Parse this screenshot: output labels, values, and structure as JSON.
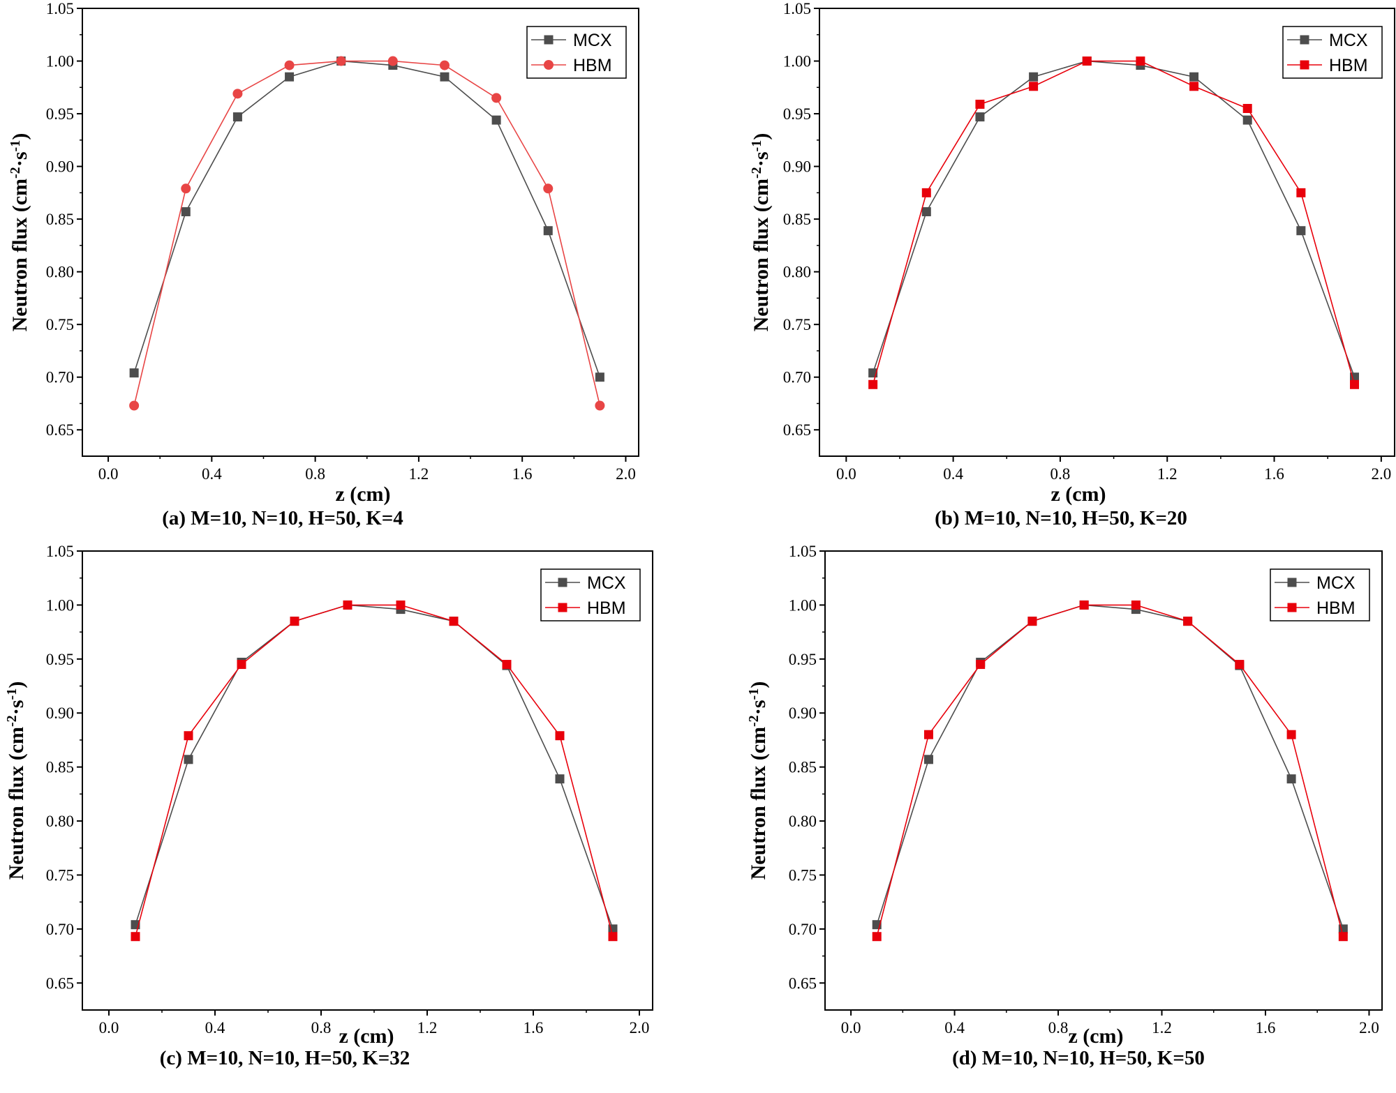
{
  "figure": {
    "colors": {
      "mcx": "#4d4d4d",
      "hbm": "#e8000b",
      "hbm_circle": "#e84545",
      "axis": "#000000"
    }
  },
  "chart_data": [
    {
      "type": "line",
      "caption": "(a) M=10, N=10, H=50, K=4",
      "xlabel": "z (cm)",
      "ylabel_parts": [
        "Neutron flux (cm",
        "-2",
        "·s",
        "-1",
        ")"
      ],
      "xlim": [
        -0.1,
        2.05
      ],
      "ylim": [
        0.625,
        1.05
      ],
      "xticks": [
        0.0,
        0.4,
        0.8,
        1.2,
        1.6,
        2.0
      ],
      "xtick_labels": [
        "0.0",
        "0.4",
        "0.8",
        "1.2",
        "1.6",
        "2.0"
      ],
      "yticks": [
        0.65,
        0.7,
        0.75,
        0.8,
        0.85,
        0.9,
        0.95,
        1.0,
        1.05
      ],
      "ytick_labels": [
        "0.65",
        "0.70",
        "0.75",
        "0.80",
        "0.85",
        "0.90",
        "0.95",
        "1.00",
        "1.05"
      ],
      "legend_position": "top-right",
      "x": [
        0.1,
        0.3,
        0.5,
        0.7,
        0.9,
        1.1,
        1.3,
        1.5,
        1.7,
        1.9
      ],
      "series": [
        {
          "name": "MCX",
          "marker": "square",
          "color": "#4d4d4d",
          "values": [
            0.704,
            0.857,
            0.947,
            0.985,
            1.0,
            0.996,
            0.985,
            0.944,
            0.839,
            0.7
          ]
        },
        {
          "name": "HBM",
          "marker": "circle",
          "color": "#e84545",
          "values": [
            0.673,
            0.879,
            0.969,
            0.996,
            1.0,
            1.0,
            0.996,
            0.965,
            0.879,
            0.673
          ]
        }
      ]
    },
    {
      "type": "line",
      "caption": "(b) M=10, N=10, H=50, K=20",
      "xlabel": "z (cm)",
      "ylabel_parts": [
        "Neutron flux (cm",
        "-2",
        "·s",
        "-1",
        ")"
      ],
      "xlim": [
        -0.1,
        2.05
      ],
      "ylim": [
        0.625,
        1.05
      ],
      "xticks": [
        0.0,
        0.4,
        0.8,
        1.2,
        1.6,
        2.0
      ],
      "xtick_labels": [
        "0.0",
        "0.4",
        "0.8",
        "1.2",
        "1.6",
        "2.0"
      ],
      "yticks": [
        0.65,
        0.7,
        0.75,
        0.8,
        0.85,
        0.9,
        0.95,
        1.0,
        1.05
      ],
      "ytick_labels": [
        "0.65",
        "0.70",
        "0.75",
        "0.80",
        "0.85",
        "0.90",
        "0.95",
        "1.00",
        "1.05"
      ],
      "legend_position": "top-right",
      "x": [
        0.1,
        0.3,
        0.5,
        0.7,
        0.9,
        1.1,
        1.3,
        1.5,
        1.7,
        1.9
      ],
      "series": [
        {
          "name": "MCX",
          "marker": "square",
          "color": "#4d4d4d",
          "values": [
            0.704,
            0.857,
            0.947,
            0.985,
            1.0,
            0.996,
            0.985,
            0.944,
            0.839,
            0.7
          ]
        },
        {
          "name": "HBM",
          "marker": "square",
          "color": "#e8000b",
          "values": [
            0.693,
            0.875,
            0.959,
            0.976,
            1.0,
            1.0,
            0.976,
            0.955,
            0.875,
            0.693
          ]
        }
      ]
    },
    {
      "type": "line",
      "caption": "(c) M=10, N=10, H=50, K=32",
      "xlabel": "z (cm)",
      "ylabel_parts": [
        "Neutron flux (cm",
        "-2",
        "·s",
        "-1",
        ")"
      ],
      "xlim": [
        -0.1,
        2.05
      ],
      "ylim": [
        0.625,
        1.05
      ],
      "xticks": [
        0.0,
        0.4,
        0.8,
        1.2,
        1.6,
        2.0
      ],
      "xtick_labels": [
        "0.0",
        "0.4",
        "0.8",
        "1.2",
        "1.6",
        "2.0"
      ],
      "yticks": [
        0.65,
        0.7,
        0.75,
        0.8,
        0.85,
        0.9,
        0.95,
        1.0,
        1.05
      ],
      "ytick_labels": [
        "0.65",
        "0.70",
        "0.75",
        "0.80",
        "0.85",
        "0.90",
        "0.95",
        "1.00",
        "1.05"
      ],
      "legend_position": "top-right",
      "x": [
        0.1,
        0.3,
        0.5,
        0.7,
        0.9,
        1.1,
        1.3,
        1.5,
        1.7,
        1.9
      ],
      "series": [
        {
          "name": "MCX",
          "marker": "square",
          "color": "#4d4d4d",
          "values": [
            0.704,
            0.857,
            0.947,
            0.985,
            1.0,
            0.996,
            0.985,
            0.944,
            0.839,
            0.7
          ]
        },
        {
          "name": "HBM",
          "marker": "square",
          "color": "#e8000b",
          "values": [
            0.693,
            0.879,
            0.945,
            0.985,
            1.0,
            1.0,
            0.985,
            0.945,
            0.879,
            0.693
          ]
        }
      ]
    },
    {
      "type": "line",
      "caption": "(d) M=10, N=10, H=50, K=50",
      "xlabel": "z (cm)",
      "ylabel_parts": [
        "Neutron flux (cm",
        "-2",
        "·s",
        "-1",
        ")"
      ],
      "xlim": [
        -0.1,
        2.05
      ],
      "ylim": [
        0.625,
        1.05
      ],
      "xticks": [
        0.0,
        0.4,
        0.8,
        1.2,
        1.6,
        2.0
      ],
      "xtick_labels": [
        "0.0",
        "0.4",
        "0.8",
        "1.2",
        "1.6",
        "2.0"
      ],
      "yticks": [
        0.65,
        0.7,
        0.75,
        0.8,
        0.85,
        0.9,
        0.95,
        1.0,
        1.05
      ],
      "ytick_labels": [
        "0.65",
        "0.70",
        "0.75",
        "0.80",
        "0.85",
        "0.90",
        "0.95",
        "1.00",
        "1.05"
      ],
      "legend_position": "top-right",
      "x": [
        0.1,
        0.3,
        0.5,
        0.7,
        0.9,
        1.1,
        1.3,
        1.5,
        1.7,
        1.9
      ],
      "series": [
        {
          "name": "MCX",
          "marker": "square",
          "color": "#4d4d4d",
          "values": [
            0.704,
            0.857,
            0.947,
            0.985,
            1.0,
            0.996,
            0.985,
            0.944,
            0.839,
            0.7
          ]
        },
        {
          "name": "HBM",
          "marker": "square",
          "color": "#e8000b",
          "values": [
            0.693,
            0.88,
            0.945,
            0.985,
            1.0,
            1.0,
            0.985,
            0.945,
            0.88,
            0.693
          ]
        }
      ]
    }
  ]
}
